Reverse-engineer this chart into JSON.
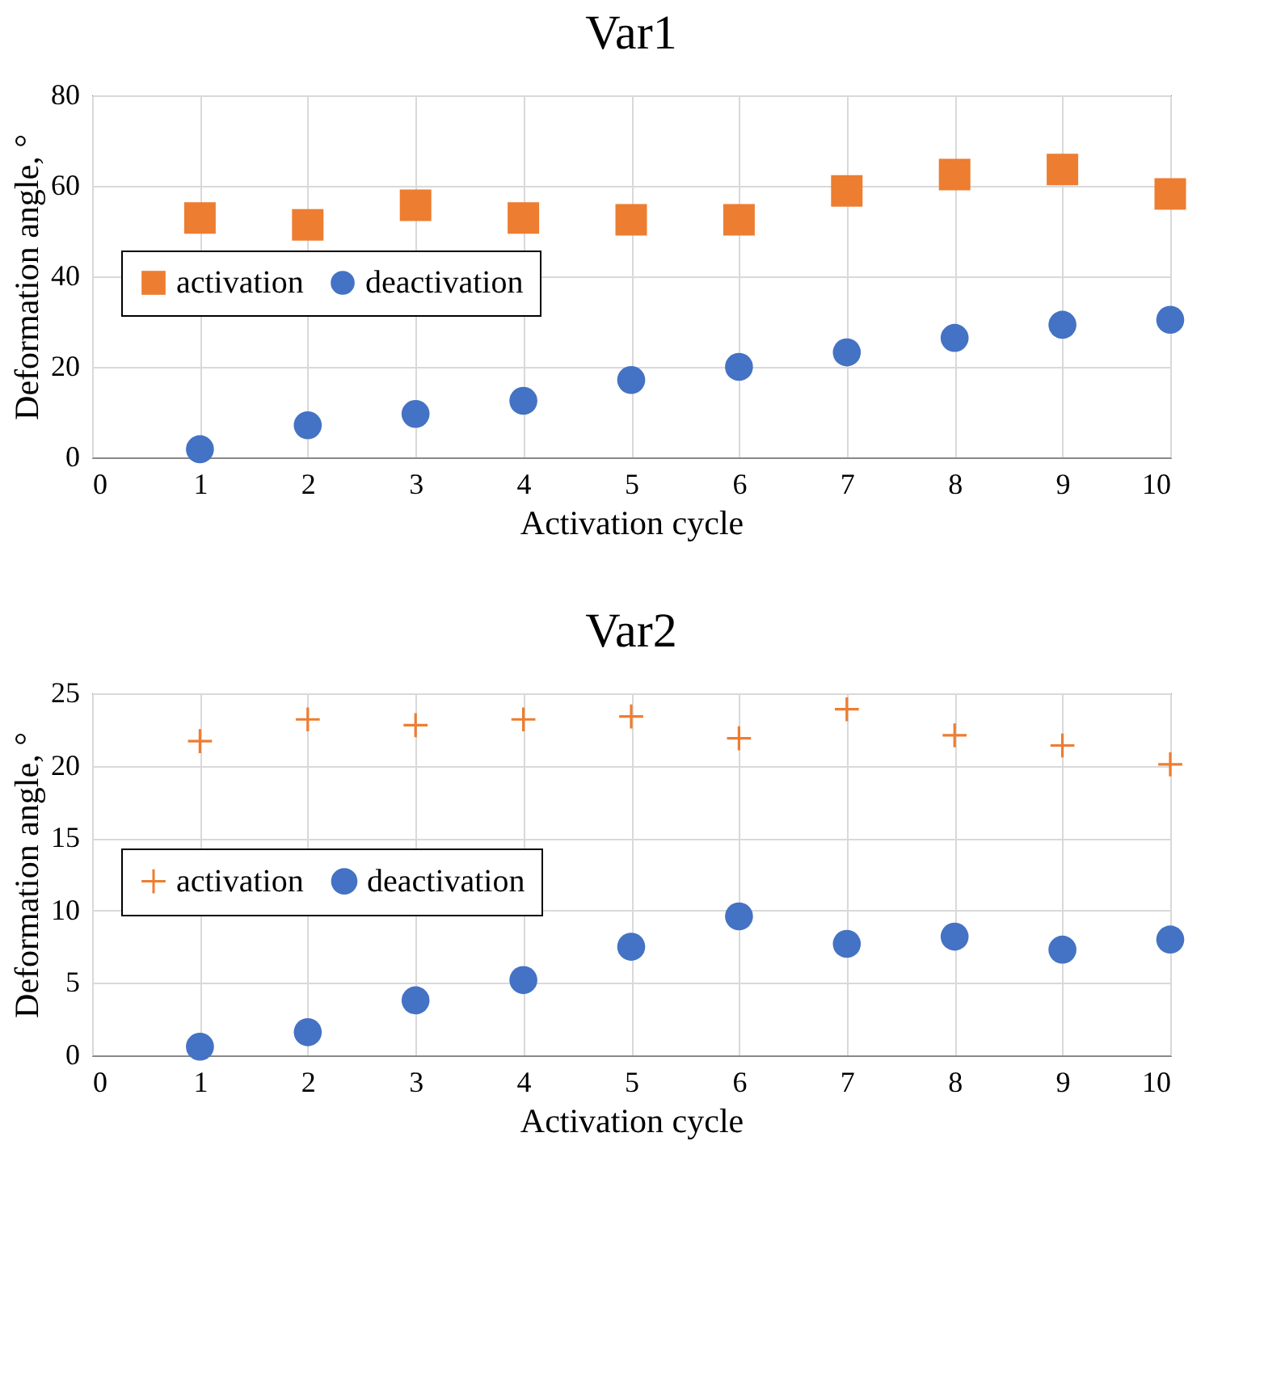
{
  "chart_data": [
    {
      "type": "scatter",
      "title": "Var1",
      "xlabel": "Activation cycle",
      "ylabel": "Deformation angle, °",
      "x": [
        1,
        2,
        3,
        4,
        5,
        6,
        7,
        8,
        9,
        10
      ],
      "series": [
        {
          "name": "activation",
          "color": "#ed7d31",
          "marker": "square",
          "values": [
            52.9,
            51.4,
            55.7,
            52.9,
            52.5,
            52.5,
            58.9,
            62.5,
            63.6,
            58.2
          ]
        },
        {
          "name": "deactivation",
          "color": "#4472c4",
          "marker": "circle",
          "values": [
            1.8,
            7.1,
            9.6,
            12.5,
            17.1,
            20.0,
            23.2,
            26.4,
            29.3,
            30.4
          ]
        }
      ],
      "xlim": [
        0,
        10
      ],
      "xticks": [
        0,
        1,
        2,
        3,
        4,
        5,
        6,
        7,
        8,
        9,
        10
      ],
      "ylim": [
        0,
        80
      ],
      "yticks": [
        0,
        20,
        40,
        60,
        80
      ],
      "grid": true,
      "legend": "left"
    },
    {
      "type": "scatter",
      "title": "Var2",
      "xlabel": "Activation cycle",
      "ylabel": "Deformation angle, °",
      "x": [
        1,
        2,
        3,
        4,
        5,
        6,
        7,
        8,
        9,
        10
      ],
      "series": [
        {
          "name": "activation",
          "color": "#ed7d31",
          "marker": "cross",
          "values": [
            21.7,
            23.2,
            22.8,
            23.2,
            23.4,
            21.9,
            23.9,
            22.1,
            21.4,
            20.1
          ]
        },
        {
          "name": "deactivation",
          "color": "#4472c4",
          "marker": "circle",
          "values": [
            0.6,
            1.6,
            3.8,
            5.2,
            7.5,
            9.6,
            7.7,
            8.2,
            7.3,
            8.0
          ]
        }
      ],
      "xlim": [
        0,
        10
      ],
      "xticks": [
        0,
        1,
        2,
        3,
        4,
        5,
        6,
        7,
        8,
        9,
        10
      ],
      "ylim": [
        0,
        25
      ],
      "yticks": [
        0,
        5,
        10,
        15,
        20,
        25
      ],
      "grid": true,
      "legend": "left"
    }
  ]
}
